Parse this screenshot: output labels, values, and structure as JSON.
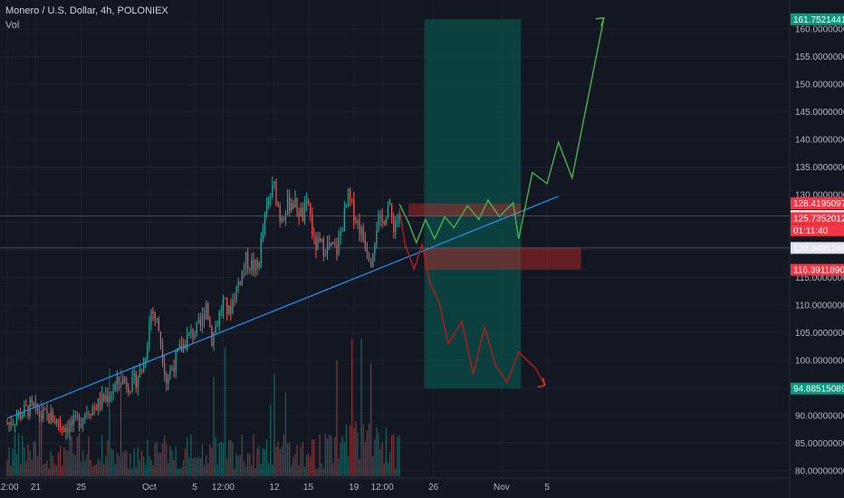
{
  "header": {
    "title": "Monero / U.S. Dollar, 4h, POLONIEX",
    "volume_label": "Vol"
  },
  "colors": {
    "background": "#131722",
    "grid": "#1e2230",
    "axis_text": "#b2b5be",
    "bull": "#26a69a",
    "bear": "#ef5350",
    "trendline": "#2196f3",
    "projection_up": "#4caf50",
    "projection_down": "#b71c1c",
    "target_zone": "#0b4f4a",
    "stop_zone": "#c62828"
  },
  "chart_data": {
    "type": "candlestick",
    "symbol": "XMR/USD",
    "interval": "4h",
    "exchange": "POLONIEX",
    "y_axis": {
      "range": [
        77.5,
        163.0
      ],
      "ticks": [
        "80.00000000",
        "85.00000000",
        "90.00000000",
        "95.00000000",
        "100.00000000",
        "105.00000000",
        "110.00000000",
        "115.00000000",
        "120.00000000",
        "125.00000000",
        "130.00000000",
        "135.00000000",
        "140.00000000",
        "145.00000000",
        "150.00000000",
        "155.00000000",
        "160.00000000"
      ]
    },
    "x_axis": {
      "ticks": [
        {
          "label": "12:00",
          "day": 0
        },
        {
          "label": "21",
          "day": 2.5
        },
        {
          "label": "25",
          "day": 6.5
        },
        {
          "label": "Oct",
          "day": 12.5
        },
        {
          "label": "5",
          "day": 16.5
        },
        {
          "label": "12:00",
          "day": 19
        },
        {
          "label": "12",
          "day": 23.5
        },
        {
          "label": "15",
          "day": 26.5
        },
        {
          "label": "19",
          "day": 30.5
        },
        {
          "label": "12:00",
          "day": 33
        },
        {
          "label": "26",
          "day": 37.5
        },
        {
          "label": "Nov",
          "day": 43.5
        },
        {
          "label": "5",
          "day": 47.5
        }
      ]
    },
    "price_path": [
      [
        0,
        88.5
      ],
      [
        1,
        90.0
      ],
      [
        2,
        91.5
      ],
      [
        3,
        90.0
      ],
      [
        4,
        89.5
      ],
      [
        5,
        88.0
      ],
      [
        6,
        88.5
      ],
      [
        7,
        91.0
      ],
      [
        8,
        92.0
      ],
      [
        9,
        94.0
      ],
      [
        10,
        96.5
      ],
      [
        11,
        95.5
      ],
      [
        12,
        99.0
      ],
      [
        12.7,
        109.5
      ],
      [
        13.3,
        106.0
      ],
      [
        14,
        96.5
      ],
      [
        15,
        101.0
      ],
      [
        16,
        104.5
      ],
      [
        17,
        106.0
      ],
      [
        17.5,
        110.5
      ],
      [
        18,
        104.0
      ],
      [
        19,
        110.5
      ],
      [
        19.5,
        108.5
      ],
      [
        20,
        112.0
      ],
      [
        21,
        118.0
      ],
      [
        22,
        116.5
      ],
      [
        22.5,
        123.5
      ],
      [
        23,
        129.0
      ],
      [
        23.5,
        131.5
      ],
      [
        24,
        126.0
      ],
      [
        25,
        129.0
      ],
      [
        26,
        126.0
      ],
      [
        26.5,
        128.5
      ],
      [
        27,
        121.0
      ],
      [
        28,
        120.5
      ],
      [
        29,
        120.0
      ],
      [
        30,
        129.5
      ],
      [
        31,
        124.0
      ],
      [
        32,
        118.5
      ],
      [
        32.5,
        124.5
      ],
      [
        33,
        125.0
      ],
      [
        33.5,
        128.0
      ],
      [
        34,
        124.5
      ],
      [
        34.5,
        126.1
      ]
    ],
    "volume_range": [
      0,
      0.38
    ],
    "trendline": {
      "from": [
        0,
        89.5
      ],
      "to": [
        48.5,
        129.7
      ]
    },
    "projection_up": {
      "color": "green",
      "points": [
        [
          34.5,
          128.3
        ],
        [
          35.3,
          125.0
        ],
        [
          36,
          121.3
        ],
        [
          36.8,
          125.5
        ],
        [
          37.6,
          122.0
        ],
        [
          38.5,
          126.0
        ],
        [
          39.3,
          124.0
        ],
        [
          40.5,
          128.0
        ],
        [
          41.5,
          125.5
        ],
        [
          42.3,
          129.0
        ],
        [
          43.3,
          126.0
        ],
        [
          44.5,
          128.5
        ],
        [
          45,
          122.0
        ],
        [
          46.2,
          134.0
        ],
        [
          47.5,
          132.0
        ],
        [
          48.5,
          139.5
        ],
        [
          49.7,
          133.0
        ],
        [
          52.5,
          162.0
        ]
      ]
    },
    "projection_down": {
      "color": "red",
      "points": [
        [
          34.5,
          127.5
        ],
        [
          35,
          121.0
        ],
        [
          35.8,
          116.5
        ],
        [
          36.5,
          121.0
        ],
        [
          37.2,
          114.0
        ],
        [
          38,
          110.5
        ],
        [
          38.8,
          103.0
        ],
        [
          40,
          107.0
        ],
        [
          41,
          97.5
        ],
        [
          42,
          106.0
        ],
        [
          43,
          99.0
        ],
        [
          44,
          96.0
        ],
        [
          45,
          101.5
        ],
        [
          46.5,
          98.5
        ],
        [
          47.3,
          95.5
        ]
      ]
    },
    "zones": {
      "target": {
        "x": [
          36.7,
          45.2
        ],
        "price": [
          94.88515089,
          161.75214412
        ]
      },
      "stop_top": {
        "x": [
          35.3,
          45.2
        ],
        "price": [
          126.1,
          128.4
        ]
      },
      "stop_bottom": {
        "x": [
          36.7,
          50.5
        ],
        "price": [
          116.4,
          120.35
        ]
      }
    },
    "reference_lines": [
      126.13307615,
      120.34812492
    ],
    "price_labels": [
      {
        "text": "161.75214412",
        "price": 161.75214412,
        "color": "#089981"
      },
      {
        "text": "128.41950971",
        "price": 128.41950971,
        "color": "#f23645"
      },
      {
        "text": "126.13307615",
        "price": 126.13307615,
        "color": "#e0e3eb",
        "text_color": "#131722"
      },
      {
        "text": "125.73520123",
        "price": 125.73520123,
        "color": "#f23645"
      },
      {
        "text": "01:11:40",
        "price": 123.55,
        "color": "#f23645"
      },
      {
        "text": "120.34812492",
        "price": 120.34812492,
        "color": "#e0e3eb",
        "text_color": "#131722"
      },
      {
        "text": "116.39118904",
        "price": 116.39118904,
        "color": "#f23645"
      },
      {
        "text": "94.88515089",
        "price": 94.88515089,
        "color": "#089981"
      }
    ]
  }
}
